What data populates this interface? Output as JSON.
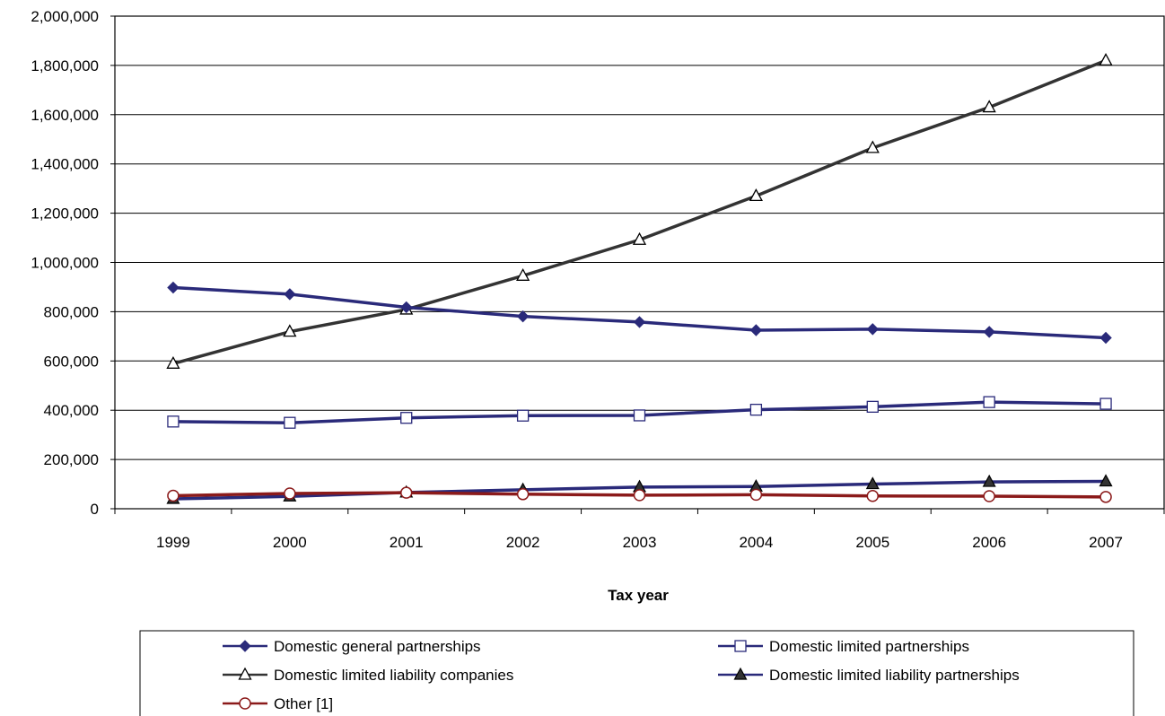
{
  "chart_data": {
    "type": "line",
    "title": "",
    "xlabel": "Tax year",
    "ylabel": "",
    "categories": [
      "1999",
      "2000",
      "2001",
      "2002",
      "2003",
      "2004",
      "2005",
      "2006",
      "2007"
    ],
    "ylim": [
      0,
      2000000
    ],
    "yticks": [
      0,
      200000,
      400000,
      600000,
      800000,
      1000000,
      1200000,
      1400000,
      1600000,
      1800000,
      2000000
    ],
    "ytick_labels": [
      "0",
      "200,000",
      "400,000",
      "600,000",
      "800,000",
      "1,000,000",
      "1,200,000",
      "1,400,000",
      "1,600,000",
      "1,800,000",
      "2,000,000"
    ],
    "grid": true,
    "legend_position": "bottom",
    "series": [
      {
        "name": "Domestic general partnerships",
        "color": "#2A2A7A",
        "marker": "diamond-filled",
        "values": [
          898000,
          871000,
          818000,
          781000,
          758000,
          725000,
          729000,
          718000,
          694000
        ]
      },
      {
        "name": "Domestic limited partnerships",
        "color": "#2A2A7A",
        "marker": "square-open",
        "values": [
          354000,
          349000,
          369000,
          378000,
          379000,
          402000,
          414000,
          433000,
          426000
        ]
      },
      {
        "name": "Domestic limited liability companies",
        "color": "#333333",
        "marker": "triangle-open",
        "values": [
          589000,
          719000,
          809000,
          946000,
          1092000,
          1270000,
          1465000,
          1630000,
          1820000
        ]
      },
      {
        "name": "Domestic limited liability partnerships",
        "color": "#2A2A7A",
        "marker": "triangle-filled",
        "values": [
          40000,
          50000,
          66000,
          77000,
          88000,
          90000,
          100000,
          109000,
          111000
        ]
      },
      {
        "name": "Other [1]",
        "color": "#8B1A1A",
        "marker": "circle-open",
        "values": [
          53000,
          62000,
          65000,
          59000,
          55000,
          57000,
          52000,
          51000,
          48000
        ]
      }
    ]
  }
}
